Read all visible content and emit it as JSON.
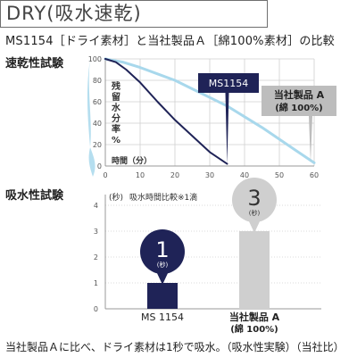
{
  "title": "DRY(吸水速乾)",
  "subtitle": "MS1154［ドライ素材］と当社製品Ａ［綿100%素材］の比較",
  "footer": "当社製品Ａに比べ、ドライ素材は1秒で吸水。（吸水性実験）（当社比）",
  "colors": {
    "ms1154": "#1f2357",
    "product_a": "#a8d8ec",
    "product_a_bar": "#cfcfcf",
    "product_a_callout": "#bdbdbd",
    "grid": "#cfcfcf"
  },
  "chart_data": [
    {
      "type": "line",
      "title": "速乾性試験",
      "ylabel": "残留水分率%",
      "xlabel": "時間（分）",
      "xlim": [
        0,
        60
      ],
      "ylim": [
        0,
        100
      ],
      "x_ticks": [
        0,
        10,
        20,
        30,
        40,
        50,
        60
      ],
      "y_ticks": [
        0,
        20,
        40,
        60,
        80,
        100
      ],
      "grid": true,
      "series": [
        {
          "name": "MS1154",
          "x": [
            0,
            3,
            6,
            10,
            15,
            20,
            25,
            30,
            35
          ],
          "y": [
            100,
            97,
            90,
            78,
            60,
            43,
            28,
            13,
            2
          ]
        },
        {
          "name": "当社製品Ａ",
          "x": [
            0,
            5,
            10,
            15,
            20,
            25,
            30,
            35,
            40,
            45,
            50,
            55,
            60
          ],
          "y": [
            100,
            97,
            92,
            86,
            80,
            72,
            64,
            56,
            46,
            36,
            25,
            14,
            3
          ]
        }
      ],
      "callouts": [
        {
          "series": "MS1154",
          "label": "MS1154"
        },
        {
          "series": "当社製品Ａ",
          "label": "当社製品 A",
          "sublabel": "(綿 100%)"
        }
      ]
    },
    {
      "type": "bar",
      "title": "吸水性試験",
      "subtitle": "吸水時間比較※1滴",
      "ylabel": "(秒)",
      "ylim": [
        0,
        4
      ],
      "y_ticks": [
        0,
        1,
        2,
        3,
        4
      ],
      "grid": true,
      "categories": [
        "MS 1154",
        "当社製品 A"
      ],
      "category_sublabels": [
        "",
        "(綿 100%)"
      ],
      "values": [
        1,
        3
      ],
      "value_unit": "(秒)"
    }
  ]
}
